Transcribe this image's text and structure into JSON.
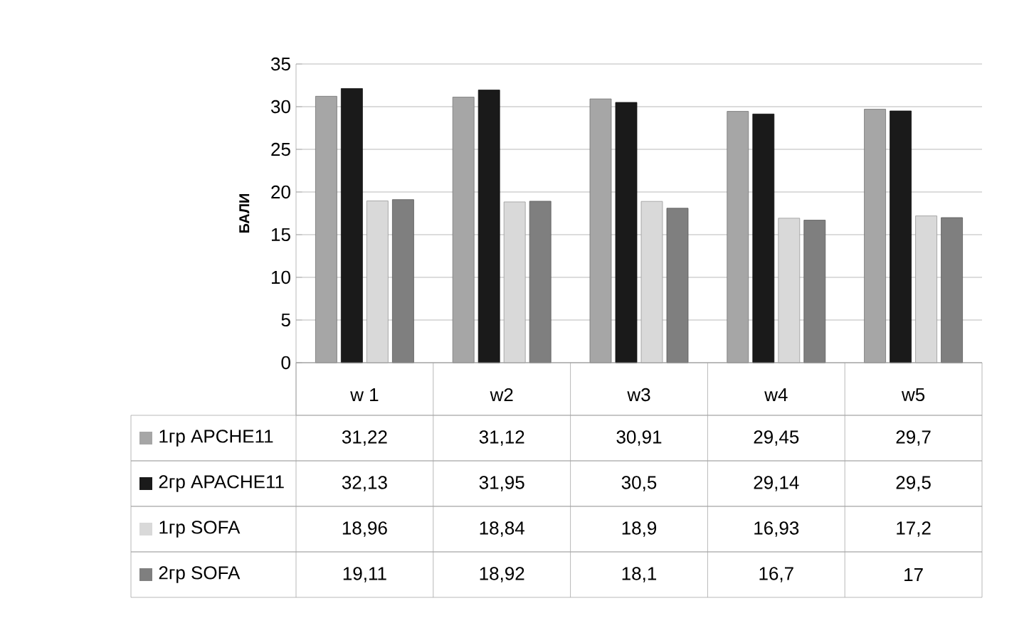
{
  "chart_data": {
    "type": "bar",
    "ylabel": "БАЛИ",
    "categories": [
      "w 1",
      "w2",
      "w3",
      "w4",
      "w5"
    ],
    "series": [
      {
        "name": "1гр APCHE11",
        "color": "#a6a6a6",
        "values": [
          31.22,
          31.12,
          30.91,
          29.45,
          29.7
        ],
        "value_labels": [
          "31,22",
          "31,12",
          "30,91",
          "29,45",
          "29,7"
        ]
      },
      {
        "name": "2гр APACHE11",
        "color": "#1a1a1a",
        "values": [
          32.13,
          31.95,
          30.5,
          29.14,
          29.5
        ],
        "value_labels": [
          "32,13",
          "31,95",
          "30,5",
          "29,14",
          "29,5"
        ]
      },
      {
        "name": "1гр SOFA",
        "color": "#d9d9d9",
        "values": [
          18.96,
          18.84,
          18.9,
          16.93,
          17.2
        ],
        "value_labels": [
          "18,96",
          "18,84",
          "18,9",
          "16,93",
          "17,2"
        ]
      },
      {
        "name": "2гр SOFA",
        "color": "#7f7f7f",
        "values": [
          19.11,
          18.92,
          18.1,
          16.7,
          17
        ],
        "value_labels": [
          "19,11",
          "18,92",
          "18,1",
          "16,7",
          "17"
        ]
      }
    ],
    "ylim": [
      0,
      35
    ],
    "yticks": [
      0,
      5,
      10,
      15,
      20,
      25,
      30,
      35
    ],
    "grid": "y",
    "legend": "bottom"
  }
}
